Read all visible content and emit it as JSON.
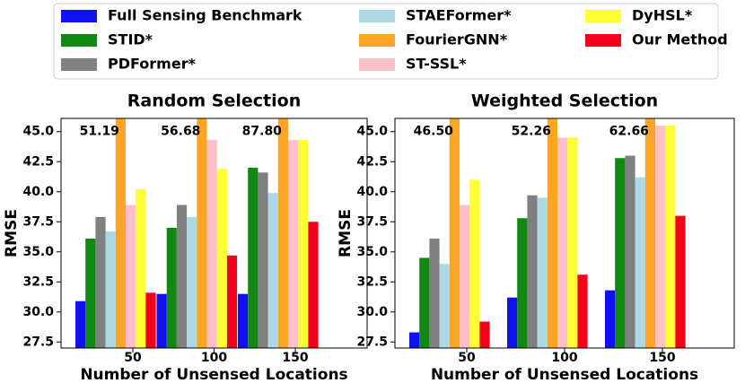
{
  "chart_data": [
    {
      "type": "bar",
      "title": "Random Selection",
      "x_label": "Number of Unsensed Locations",
      "y_label": "RMSE",
      "categories": [
        "50",
        "100",
        "150"
      ],
      "ylim": [
        27,
        46.1
      ],
      "yticks": [
        27.5,
        {
          "value": 30,
          "label": "30.0"
        },
        32.5,
        {
          "value": 35,
          "label": "35.0"
        },
        37.5,
        {
          "value": 40,
          "label": "40.0"
        },
        42.5,
        {
          "value": 45,
          "label": "45.0"
        }
      ],
      "series": [
        {
          "name": "Full Sensing Benchmark",
          "color": "#1010f0",
          "values": [
            30.9,
            31.5,
            31.5
          ]
        },
        {
          "name": "STID*",
          "color": "#118811",
          "values": [
            36.1,
            37.0,
            42.0
          ]
        },
        {
          "name": "PDFormer*",
          "color": "#808080",
          "values": [
            37.9,
            38.9,
            41.6
          ]
        },
        {
          "name": "STAEFormer*",
          "color": "#add8e6",
          "values": [
            36.7,
            37.9,
            39.9
          ]
        },
        {
          "name": "FourierGNN*",
          "color": "#ffa526",
          "values": [
            51.19,
            56.68,
            87.8
          ],
          "value_labels": [
            "51.19",
            "56.68",
            "87.80"
          ]
        },
        {
          "name": "ST-SSL*",
          "color": "#ffc0cb",
          "values": [
            38.9,
            44.3,
            44.3
          ]
        },
        {
          "name": "DyHSL*",
          "color": "#ffff33",
          "values": [
            40.2,
            41.9,
            44.3
          ]
        },
        {
          "name": "Our Method",
          "color": "#f5001c",
          "values": [
            31.6,
            34.7,
            37.5
          ]
        }
      ]
    },
    {
      "type": "bar",
      "title": "Weighted Selection",
      "x_label": "Number of Unsensed Locations",
      "y_label": "RMSE",
      "categories": [
        "50",
        "100",
        "150"
      ],
      "ylim": [
        27,
        46.1
      ],
      "yticks": [
        27.5,
        {
          "value": 30,
          "label": "30.0"
        },
        32.5,
        {
          "value": 35,
          "label": "35.0"
        },
        37.5,
        {
          "value": 40,
          "label": "40.0"
        },
        42.5,
        {
          "value": 45,
          "label": "45.0"
        }
      ],
      "series": [
        {
          "name": "Full Sensing Benchmark",
          "color": "#1010f0",
          "values": [
            28.3,
            31.2,
            31.8
          ]
        },
        {
          "name": "STID*",
          "color": "#118811",
          "values": [
            34.5,
            37.8,
            42.8
          ]
        },
        {
          "name": "PDFormer*",
          "color": "#808080",
          "values": [
            36.1,
            39.7,
            43.0
          ]
        },
        {
          "name": "STAEFormer*",
          "color": "#add8e6",
          "values": [
            34.0,
            39.5,
            41.2
          ]
        },
        {
          "name": "FourierGNN*",
          "color": "#ffa526",
          "values": [
            46.5,
            52.26,
            62.66
          ],
          "value_labels": [
            "46.50",
            "52.26",
            "62.66"
          ]
        },
        {
          "name": "ST-SSL*",
          "color": "#ffc0cb",
          "values": [
            38.9,
            44.5,
            45.5
          ]
        },
        {
          "name": "DyHSL*",
          "color": "#ffff33",
          "values": [
            41.0,
            44.5,
            45.5
          ]
        },
        {
          "name": "Our Method",
          "color": "#f5001c",
          "values": [
            29.2,
            33.1,
            38.0
          ]
        }
      ]
    }
  ]
}
